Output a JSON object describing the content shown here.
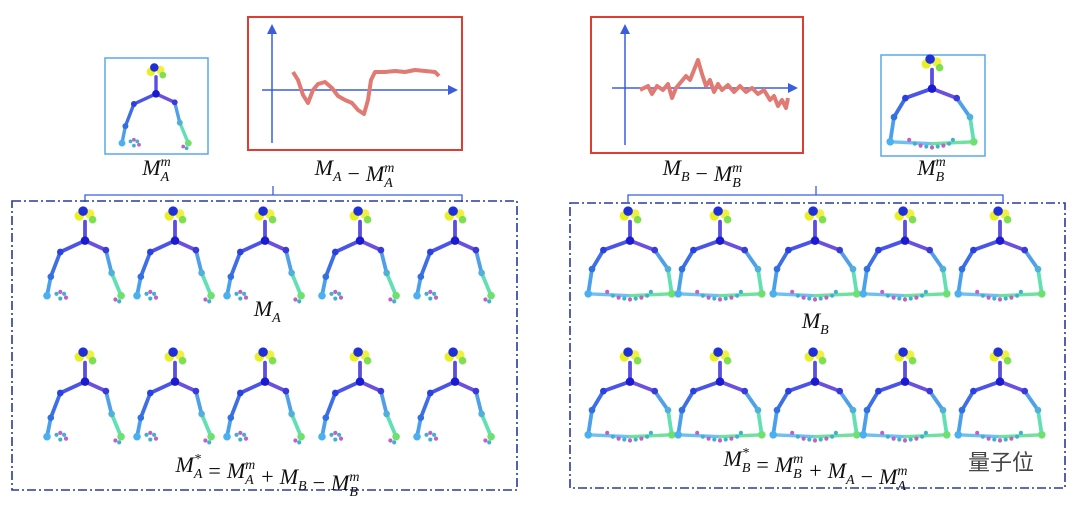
{
  "left": {
    "reference_label": [
      {
        "text": "M",
        "sub": "A",
        "sup": "m"
      }
    ],
    "difference_label": [
      {
        "text": "M",
        "sub": "A"
      },
      {
        "text": "−"
      },
      {
        "text": "M",
        "sub": "A",
        "sup": "m"
      }
    ],
    "motion_label": [
      {
        "text": "M",
        "sub": "A"
      }
    ],
    "result_label": [
      {
        "text": "M",
        "sub": "A",
        "sup": "*"
      },
      {
        "text": "="
      },
      {
        "text": "M",
        "sub": "A",
        "sup": "m"
      },
      {
        "text": "+"
      },
      {
        "text": "M",
        "sub": "B"
      },
      {
        "text": "−"
      },
      {
        "text": "M",
        "sub": "B",
        "sup": "m"
      }
    ]
  },
  "right": {
    "reference_label": [
      {
        "text": "M",
        "sub": "B",
        "sup": "m"
      }
    ],
    "difference_label": [
      {
        "text": "M",
        "sub": "B"
      },
      {
        "text": "−"
      },
      {
        "text": "M",
        "sub": "B",
        "sup": "m"
      }
    ],
    "motion_label": [
      {
        "text": "M",
        "sub": "B"
      }
    ],
    "result_label": [
      {
        "text": "M",
        "sub": "B",
        "sup": "*"
      },
      {
        "text": "="
      },
      {
        "text": "M",
        "sub": "B",
        "sup": "m"
      },
      {
        "text": "+"
      },
      {
        "text": "M",
        "sub": "A"
      },
      {
        "text": "−"
      },
      {
        "text": "M",
        "sub": "A",
        "sup": "m"
      }
    ]
  },
  "watermark": "量子位"
}
